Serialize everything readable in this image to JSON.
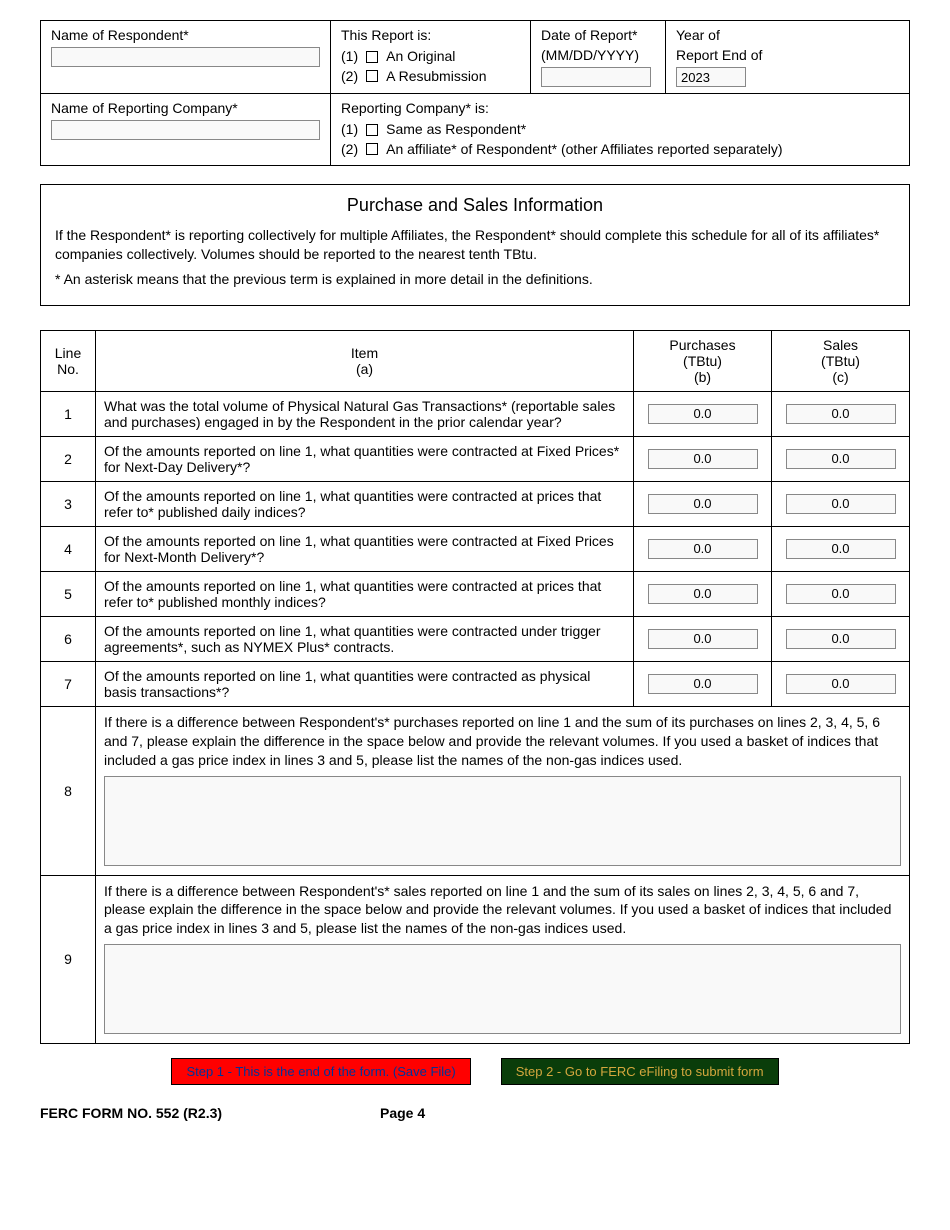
{
  "header": {
    "respondent_label": "Name of Respondent*",
    "respondent_value": "",
    "report_is_label": "This Report is:",
    "report_opt1_prefix": "(1)",
    "report_opt1": "An Original",
    "report_opt2_prefix": "(2)",
    "report_opt2": "A Resubmission",
    "date_label": "Date of Report*",
    "date_sub": "(MM/DD/YYYY)",
    "date_value": "",
    "year_label": "Year of",
    "year_sub": "Report End of",
    "year_value": "2023",
    "company_label": "Name of Reporting Company*",
    "company_value": "",
    "company_is_label": "Reporting Company* is:",
    "company_opt1_prefix": "(1)",
    "company_opt1": "Same as Respondent*",
    "company_opt2_prefix": "(2)",
    "company_opt2": "An affiliate* of Respondent* (other Affiliates reported separately)"
  },
  "title_section": {
    "heading": "Purchase and Sales Information",
    "para1": "If the Respondent* is reporting collectively for multiple Affiliates, the Respondent* should complete this schedule for all of its affiliates* companies collectively.   Volumes should be reported to the nearest tenth TBtu.",
    "para2": "* An asterisk means that the previous term is explained in more detail in the definitions."
  },
  "table": {
    "headers": {
      "line": "Line\nNo.",
      "item": "Item\n(a)",
      "purchases": "Purchases\n(TBtu)\n(b)",
      "sales": "Sales\n(TBtu)\n(c)"
    },
    "rows": [
      {
        "no": "1",
        "item": "What was the total volume of Physical Natural Gas Transactions* (reportable sales and purchases) engaged in by the Respondent in the prior calendar year?",
        "pur": "0.0",
        "sal": "0.0"
      },
      {
        "no": "2",
        "item": "Of the amounts reported on line 1, what quantities were contracted at Fixed Prices* for Next-Day Delivery*?",
        "pur": "0.0",
        "sal": "0.0"
      },
      {
        "no": "3",
        "item": "Of the amounts reported on line 1, what quantities were contracted at prices that refer to* published daily indices?",
        "pur": "0.0",
        "sal": "0.0"
      },
      {
        "no": "4",
        "item": "Of the amounts reported on line 1, what quantities were contracted at Fixed Prices for Next-Month Delivery*?",
        "pur": "0.0",
        "sal": "0.0"
      },
      {
        "no": "5",
        "item": "Of the amounts reported on line 1, what quantities were contracted at prices that refer to* published monthly indices?",
        "pur": "0.0",
        "sal": "0.0"
      },
      {
        "no": "6",
        "item": "Of the amounts reported on line 1, what quantities were contracted under trigger agreements*, such as NYMEX Plus* contracts.",
        "pur": "0.0",
        "sal": "0.0"
      },
      {
        "no": "7",
        "item": "Of the amounts reported on line 1, what quantities were contracted as physical basis transactions*?",
        "pur": "0.0",
        "sal": "0.0"
      }
    ],
    "row8": {
      "no": "8",
      "text": "If there is a difference between Respondent's* purchases reported on line 1 and the sum of its purchases on lines 2, 3, 4, 5, 6 and 7, please explain the difference in the space below and provide the relevant volumes.  If you used a basket of indices that included a gas price index in lines 3 and 5, please list the names of the non-gas indices used."
    },
    "row9": {
      "no": "9",
      "text": "If there is a difference between Respondent's* sales reported on line 1 and the sum of its sales on lines 2, 3, 4, 5, 6 and 7, please explain the difference in the space below and provide the relevant volumes.  If you used a basket of indices that included a gas price index in lines 3 and 5, please list the names of the non-gas indices used."
    }
  },
  "buttons": {
    "step1": "Step 1 - This is the end of the form.  (Save File)",
    "step2": "Step 2 - Go to FERC eFiling to submit form"
  },
  "footer": {
    "form_no": "FERC FORM NO. 552 (R2.3)",
    "page": "Page 4"
  }
}
